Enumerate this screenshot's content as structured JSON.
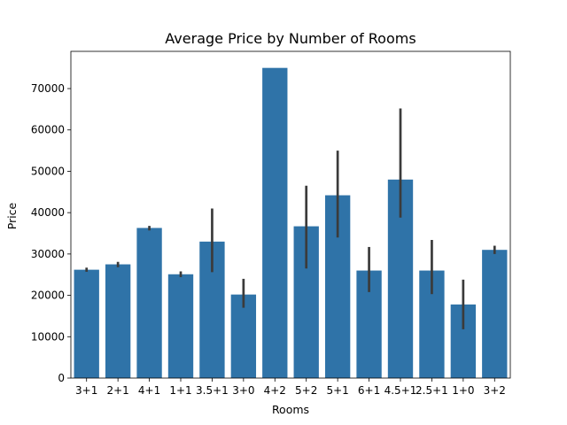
{
  "chart_data": {
    "type": "bar",
    "title": "Average Price by Number of Rooms",
    "xlabel": "Rooms",
    "ylabel": "Price",
    "ylim": [
      0,
      79000
    ],
    "yticks": [
      0,
      10000,
      20000,
      30000,
      40000,
      50000,
      60000,
      70000
    ],
    "grid": false,
    "legend": "none",
    "bar_color": "#2f73a8",
    "error_bar_color": "#3b3b3b",
    "categories": [
      "3+1",
      "2+1",
      "4+1",
      "1+1",
      "3.5+1",
      "3+0",
      "4+2",
      "5+2",
      "5+1",
      "6+1",
      "4.5+1",
      "2.5+1",
      "1+0",
      "3+2"
    ],
    "values": [
      26200,
      27500,
      36300,
      25100,
      33000,
      20200,
      75000,
      36700,
      44200,
      26000,
      48000,
      26000,
      17800,
      31000
    ],
    "error_low": [
      25700,
      26800,
      35700,
      24400,
      25600,
      17000,
      75000,
      26500,
      34000,
      20800,
      38800,
      20300,
      11800,
      30000
    ],
    "error_high": [
      26700,
      28100,
      36800,
      25800,
      41000,
      24000,
      75000,
      46500,
      55000,
      31700,
      65200,
      33400,
      23800,
      32000
    ]
  }
}
